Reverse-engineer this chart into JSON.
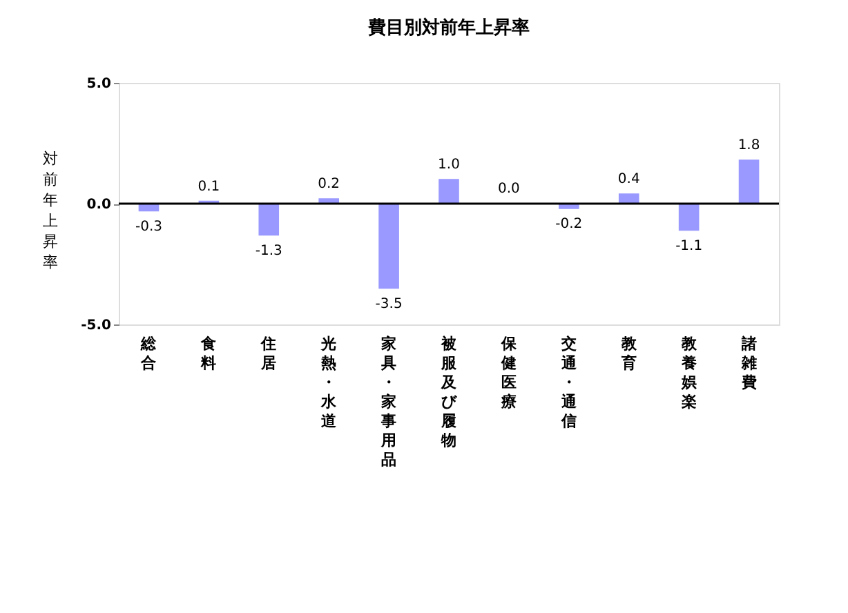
{
  "chart_data": {
    "type": "bar",
    "title": "費目別対前年上昇率",
    "ylabel": "対前年上昇率",
    "categories": [
      "総合",
      "食料",
      "住居",
      "光熱・水道",
      "家具・家事用品",
      "被服及び履物",
      "保健医療",
      "交通・通信",
      "教育",
      "教養娯楽",
      "諸雑費"
    ],
    "values": [
      -0.3,
      0.1,
      -1.3,
      0.2,
      -3.5,
      1.0,
      0.0,
      -0.2,
      0.4,
      -1.1,
      1.8
    ],
    "value_labels": [
      "-0.3",
      "0.1",
      "-1.3",
      "0.2",
      "-3.5",
      "1.0",
      "0.0",
      "-0.2",
      "0.4",
      "-1.1",
      "1.8"
    ],
    "color": "#9999ff",
    "ylim": [
      -5,
      5
    ],
    "yticks": [
      {
        "value": -5,
        "label": "-5.0"
      },
      {
        "value": 0,
        "label": "0.0"
      },
      {
        "value": 5,
        "label": "5.0"
      }
    ],
    "ref_lines": [
      {
        "axis": "y",
        "value": 0,
        "color": "#000000"
      }
    ],
    "grid": false
  }
}
